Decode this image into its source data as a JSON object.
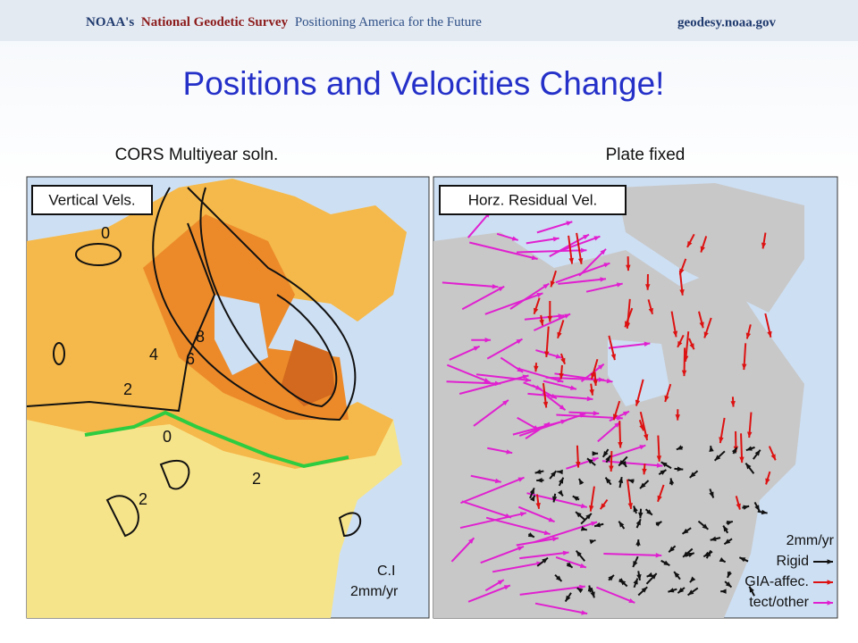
{
  "header": {
    "agency": "NOAA's",
    "survey": "National Geodetic Survey",
    "motto": "Positioning America for the Future",
    "url": "geodesy.noaa.gov"
  },
  "title": "Positions and Velocities Change!",
  "left_panel": {
    "caption": "CORS Multiyear soln.",
    "map_label": "Vertical Vels.",
    "contour_labels": [
      "0",
      "4",
      "2",
      "0",
      "8",
      "6",
      "2",
      "2"
    ],
    "note": [
      "C.I",
      "2mm/yr"
    ]
  },
  "right_panel": {
    "caption": "Plate fixed",
    "map_label": "Horz. Residual Vel.",
    "legend": [
      "2mm/yr",
      "Rigid",
      "GIA-affec.",
      "tect/other"
    ]
  }
}
